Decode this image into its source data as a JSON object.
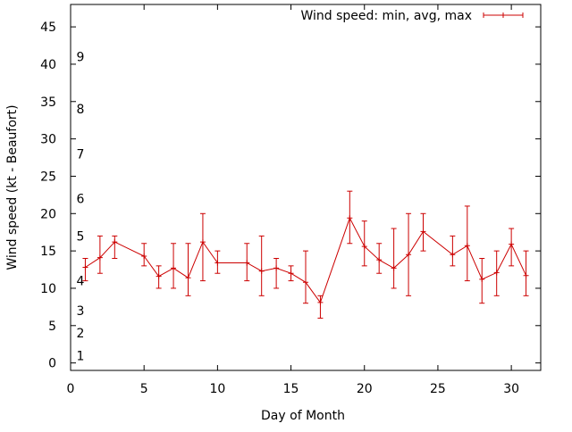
{
  "chart_data": {
    "type": "line",
    "title": "",
    "xlabel": "Day of Month",
    "ylabel": "Wind speed (kt - Beaufort)",
    "xlim": [
      0,
      32
    ],
    "ylim": [
      -1,
      48
    ],
    "x_ticks": [
      0,
      5,
      10,
      15,
      20,
      25,
      30
    ],
    "y_ticks": [
      0,
      5,
      10,
      15,
      20,
      25,
      30,
      35,
      40,
      45
    ],
    "grid": false,
    "legend_position": "top-right",
    "series": [
      {
        "name": "Wind speed: min, avg, max",
        "color": "#cc0000",
        "points": [
          {
            "x": 1,
            "avg": 12.8,
            "min": 11,
            "max": 14
          },
          {
            "x": 2,
            "avg": 14.1,
            "min": 12,
            "max": 17
          },
          {
            "x": 3,
            "avg": 16.2,
            "min": 14,
            "max": 17
          },
          {
            "x": 5,
            "avg": 14.3,
            "min": 13,
            "max": 16
          },
          {
            "x": 6,
            "avg": 11.6,
            "min": 10,
            "max": 13
          },
          {
            "x": 7,
            "avg": 12.7,
            "min": 10,
            "max": 16
          },
          {
            "x": 8,
            "avg": 11.4,
            "min": 9,
            "max": 16
          },
          {
            "x": 9,
            "avg": 16.2,
            "min": 11,
            "max": 20
          },
          {
            "x": 10,
            "avg": 13.4,
            "min": 12,
            "max": 15
          },
          {
            "x": 12,
            "avg": 13.4,
            "min": 11,
            "max": 16
          },
          {
            "x": 13,
            "avg": 12.3,
            "min": 9,
            "max": 17
          },
          {
            "x": 14,
            "avg": 12.7,
            "min": 10,
            "max": 14
          },
          {
            "x": 15,
            "avg": 12.0,
            "min": 11,
            "max": 13
          },
          {
            "x": 16,
            "avg": 10.8,
            "min": 8,
            "max": 15
          },
          {
            "x": 17,
            "avg": 8.1,
            "min": 6,
            "max": 9
          },
          {
            "x": 19,
            "avg": 19.4,
            "min": 16,
            "max": 23
          },
          {
            "x": 20,
            "avg": 15.6,
            "min": 13,
            "max": 19
          },
          {
            "x": 21,
            "avg": 13.8,
            "min": 12,
            "max": 16
          },
          {
            "x": 22,
            "avg": 12.7,
            "min": 10,
            "max": 18
          },
          {
            "x": 23,
            "avg": 14.5,
            "min": 9,
            "max": 20
          },
          {
            "x": 24,
            "avg": 17.6,
            "min": 15,
            "max": 20
          },
          {
            "x": 26,
            "avg": 14.5,
            "min": 13,
            "max": 17
          },
          {
            "x": 27,
            "avg": 15.7,
            "min": 11,
            "max": 21
          },
          {
            "x": 28,
            "avg": 11.2,
            "min": 8,
            "max": 14
          },
          {
            "x": 29,
            "avg": 12.1,
            "min": 9,
            "max": 15
          },
          {
            "x": 30,
            "avg": 15.9,
            "min": 13,
            "max": 18
          },
          {
            "x": 31,
            "avg": 11.7,
            "min": 9,
            "max": 15
          }
        ]
      }
    ],
    "beaufort_labels": [
      {
        "label": "1",
        "y": 1
      },
      {
        "label": "2",
        "y": 4
      },
      {
        "label": "3",
        "y": 7
      },
      {
        "label": "4",
        "y": 11
      },
      {
        "label": "5",
        "y": 17
      },
      {
        "label": "6",
        "y": 22
      },
      {
        "label": "7",
        "y": 28
      },
      {
        "label": "8",
        "y": 34
      },
      {
        "label": "9",
        "y": 41
      }
    ]
  }
}
